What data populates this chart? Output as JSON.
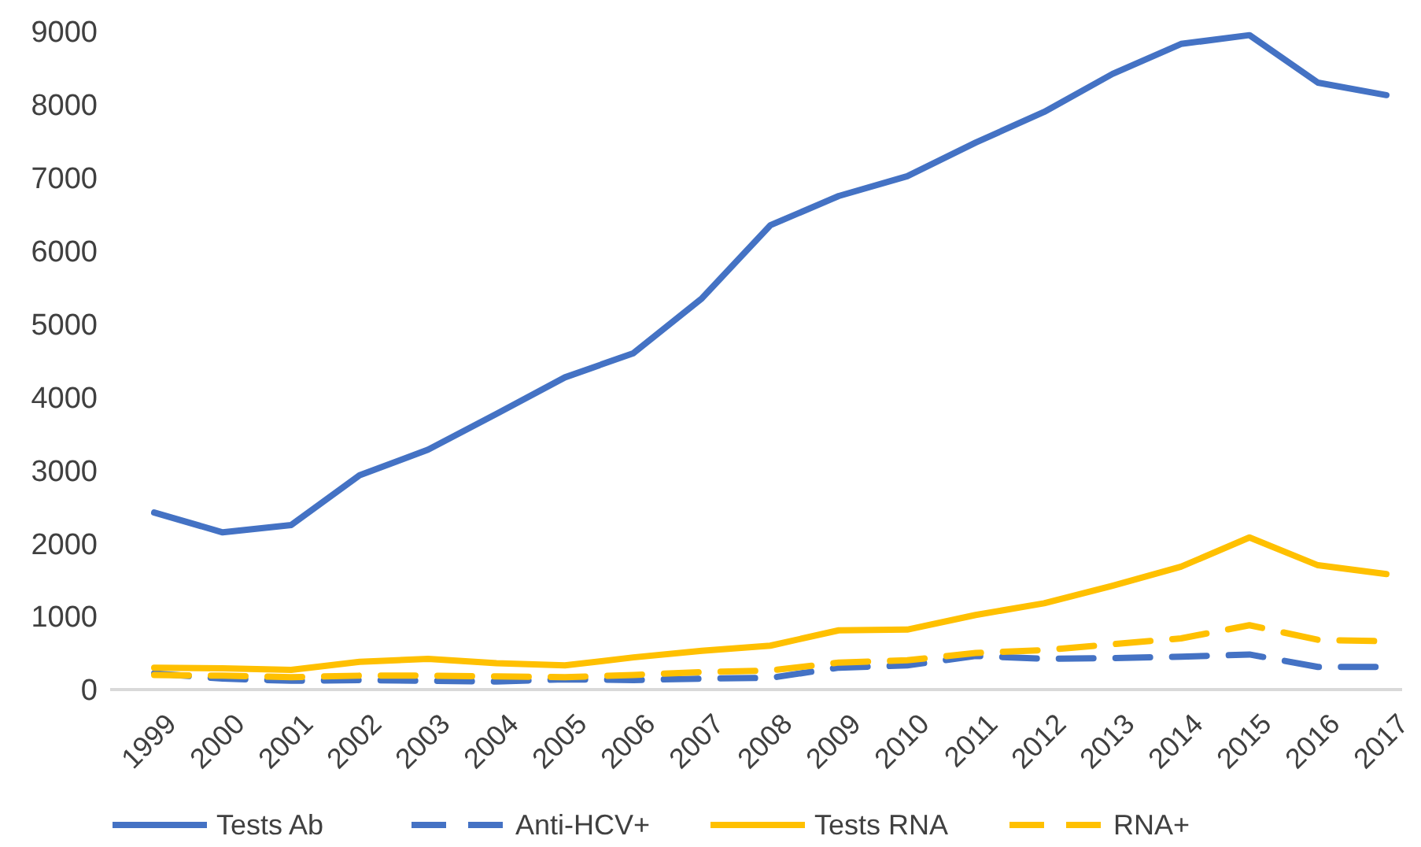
{
  "chart_data": {
    "type": "line",
    "categories": [
      "1999",
      "2000",
      "2001",
      "2002",
      "2003",
      "2004",
      "2005",
      "2006",
      "2007",
      "2008",
      "2009",
      "2010",
      "2011",
      "2012",
      "2013",
      "2014",
      "2015",
      "2016",
      "2017"
    ],
    "series": [
      {
        "name": "Tests Ab",
        "color": "#4472c4",
        "line_style": "solid",
        "values": [
          2420,
          2150,
          2250,
          2930,
          3280,
          3770,
          4270,
          4600,
          5350,
          6350,
          6750,
          7020,
          7480,
          7900,
          8420,
          8830,
          8950,
          8300,
          8130
        ]
      },
      {
        "name": "Anti-HCV+",
        "color": "#4472c4",
        "line_style": "dashed",
        "values": [
          220,
          150,
          120,
          130,
          120,
          110,
          140,
          130,
          150,
          160,
          300,
          330,
          460,
          420,
          430,
          450,
          480,
          310,
          310
        ]
      },
      {
        "name": "Tests RNA",
        "color": "#ffc000",
        "line_style": "solid",
        "values": [
          300,
          290,
          270,
          380,
          420,
          360,
          330,
          440,
          530,
          600,
          810,
          820,
          1020,
          1180,
          1420,
          1680,
          2080,
          1700,
          1580
        ]
      },
      {
        "name": "RNA+",
        "color": "#ffc000",
        "line_style": "dashed",
        "values": [
          200,
          190,
          170,
          190,
          190,
          180,
          170,
          200,
          240,
          260,
          370,
          400,
          500,
          540,
          620,
          700,
          880,
          680,
          660
        ]
      }
    ],
    "ylim": [
      0,
      9000
    ],
    "yticks": [
      0,
      1000,
      2000,
      3000,
      4000,
      5000,
      6000,
      7000,
      8000,
      9000
    ],
    "grid": false,
    "legend": "bottom",
    "marker": "none"
  }
}
